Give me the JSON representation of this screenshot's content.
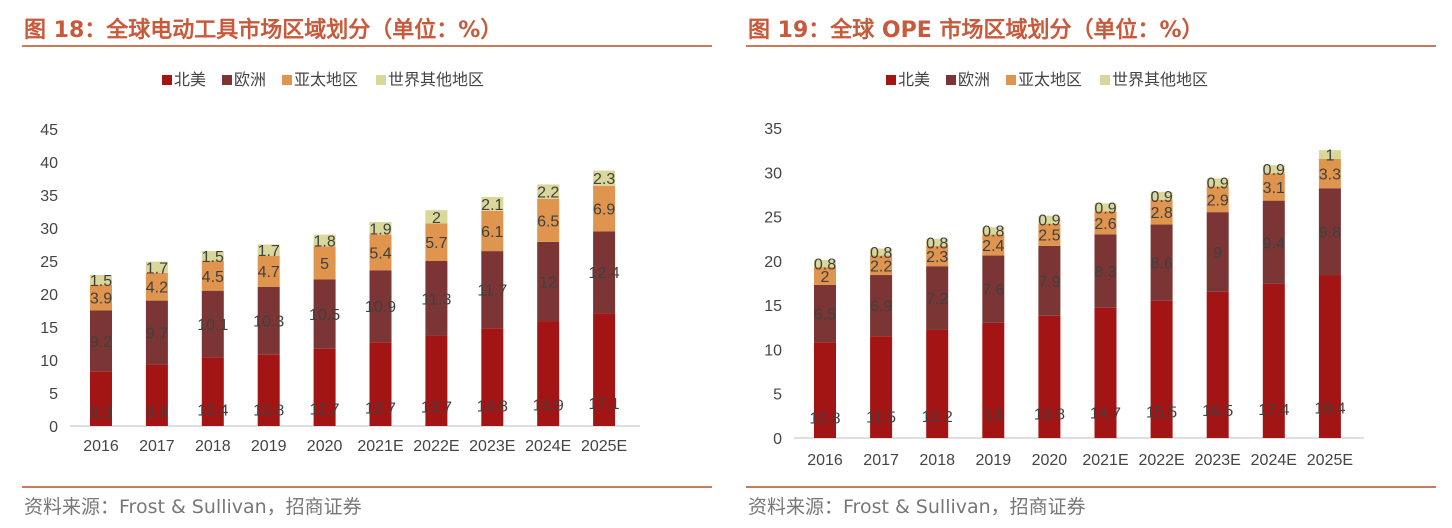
{
  "colors": {
    "north_america": "#a31515",
    "europe": "#7b3535",
    "asia_pacific": "#e0954f",
    "rest_of_world": "#d9d79a",
    "title": "#c8593a"
  },
  "chart_data": [
    {
      "type": "bar",
      "stacked": true,
      "title": "图 18：全球电动工具市场区域划分（单位：%）",
      "source": "资料来源：Frost & Sullivan，招商证券",
      "legend_position": "top",
      "categories": [
        "2016",
        "2017",
        "2018",
        "2019",
        "2020",
        "2021E",
        "2022E",
        "2023E",
        "2024E",
        "2025E"
      ],
      "ylim": [
        0,
        45
      ],
      "yticks": [
        0,
        5,
        10,
        15,
        20,
        25,
        30,
        35,
        40,
        45
      ],
      "grid": false,
      "series": [
        {
          "name": "北美",
          "values": [
            8.3,
            9.3,
            10.4,
            10.8,
            11.7,
            12.7,
            13.7,
            14.8,
            15.9,
            17.1
          ]
        },
        {
          "name": "欧洲",
          "values": [
            9.2,
            9.7,
            10.1,
            10.3,
            10.5,
            10.9,
            11.3,
            11.7,
            12,
            12.4
          ]
        },
        {
          "name": "亚太地区",
          "values": [
            3.9,
            4.2,
            4.5,
            4.7,
            5,
            5.4,
            5.7,
            6.1,
            6.5,
            6.9
          ]
        },
        {
          "name": "世界其他地区",
          "values": [
            1.5,
            1.7,
            1.5,
            1.7,
            1.8,
            1.9,
            2,
            2.1,
            2.2,
            2.3
          ]
        }
      ]
    },
    {
      "type": "bar",
      "stacked": true,
      "title": "图 19：全球 OPE 市场区域划分（单位：%）",
      "source": "资料来源：Frost & Sullivan，招商证券",
      "legend_position": "top",
      "categories": [
        "2016",
        "2017",
        "2018",
        "2019",
        "2020",
        "2021E",
        "2022E",
        "2023E",
        "2024E",
        "2025E"
      ],
      "ylim": [
        0,
        35
      ],
      "yticks": [
        0,
        5,
        10,
        15,
        20,
        25,
        30,
        35
      ],
      "grid": false,
      "series": [
        {
          "name": "北美",
          "values": [
            10.8,
            11.5,
            12.2,
            13,
            13.8,
            14.7,
            15.5,
            16.5,
            17.4,
            18.4
          ]
        },
        {
          "name": "欧洲",
          "values": [
            6.5,
            6.9,
            7.2,
            7.6,
            7.9,
            8.3,
            8.6,
            9,
            9.4,
            9.8
          ]
        },
        {
          "name": "亚太地区",
          "values": [
            2,
            2.2,
            2.3,
            2.4,
            2.5,
            2.6,
            2.8,
            2.9,
            3.1,
            3.3
          ]
        },
        {
          "name": "世界其他地区",
          "values": [
            0.8,
            0.8,
            0.8,
            0.8,
            0.9,
            0.9,
            0.9,
            0.9,
            0.9,
            1
          ]
        }
      ]
    }
  ]
}
